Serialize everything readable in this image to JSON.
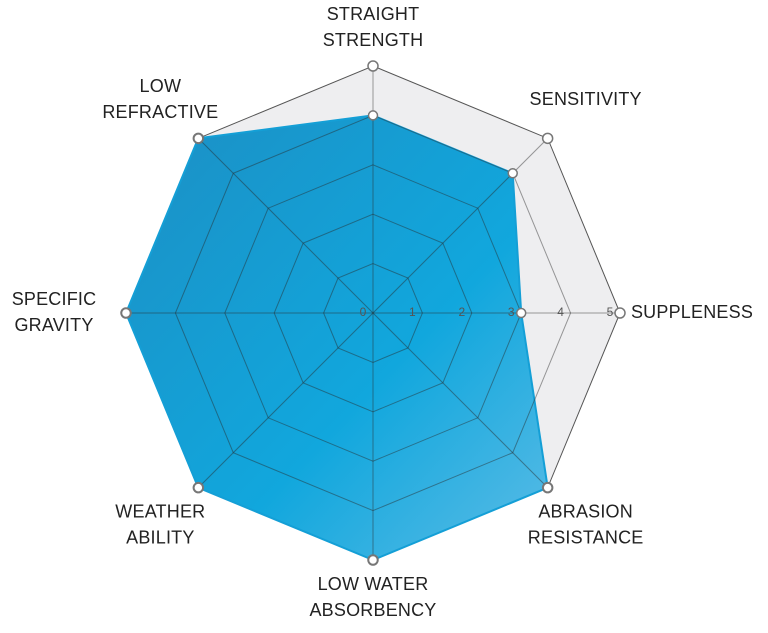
{
  "chart_data": {
    "type": "radar",
    "categories": [
      [
        "STRAIGHT",
        "STRENGTH"
      ],
      [
        "SENSITIVITY"
      ],
      [
        "SUPPLENESS"
      ],
      [
        "ABRASION",
        "RESISTANCE"
      ],
      [
        "LOW WATER",
        "ABSORBENCY"
      ],
      [
        "WEATHER",
        "ABILITY"
      ],
      [
        "SPECIFIC",
        "GRAVITY"
      ],
      [
        "LOW",
        "REFRACTIVE"
      ]
    ],
    "values": [
      4,
      4,
      3,
      5,
      5,
      5,
      5,
      5
    ],
    "color": "#149fd6",
    "rlim": [
      0,
      5
    ],
    "rticks": [
      0,
      1,
      2,
      3,
      4,
      5
    ],
    "grid": true
  }
}
